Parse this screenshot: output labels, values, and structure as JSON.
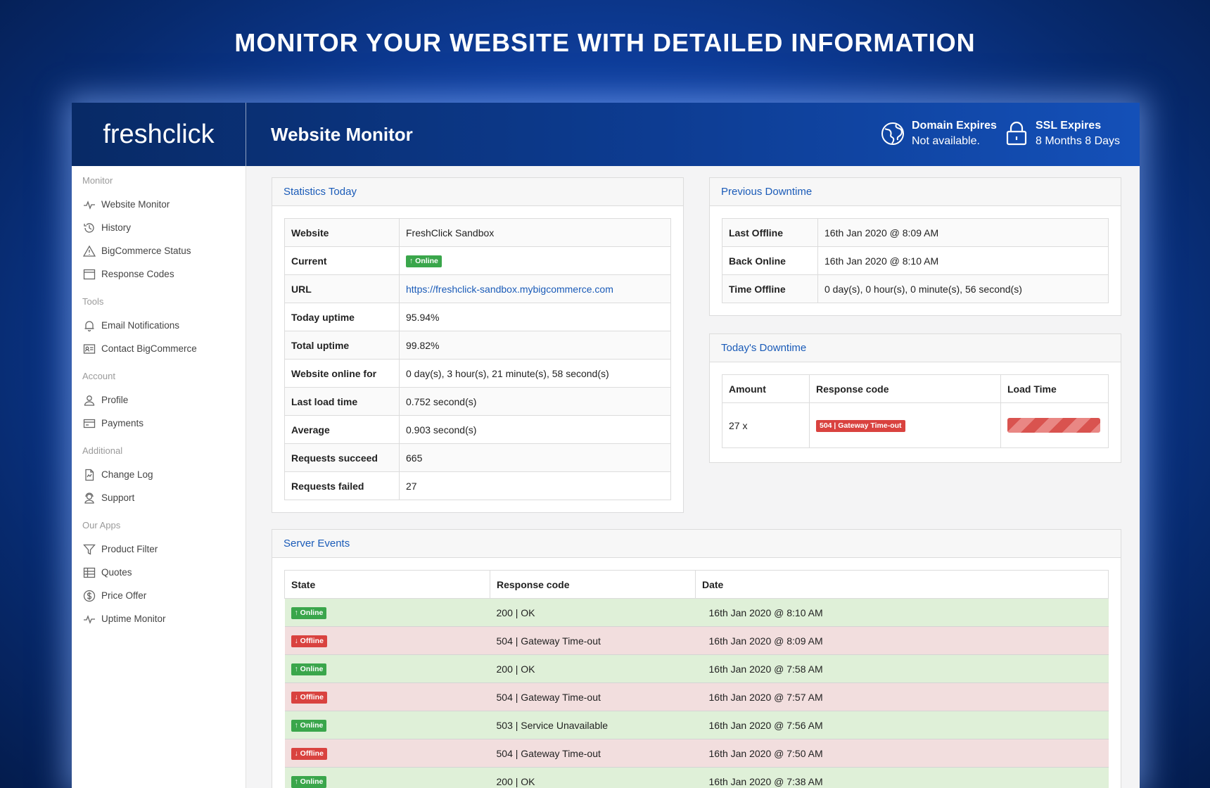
{
  "banner": "MONITOR YOUR WEBSITE WITH DETAILED INFORMATION",
  "header": {
    "logo": "freshclick",
    "title": "Website Monitor",
    "domain": {
      "label": "Domain Expires",
      "value": "Not available."
    },
    "ssl": {
      "label": "SSL Expires",
      "value": "8 Months 8 Days"
    }
  },
  "sidebar": {
    "sections": [
      {
        "title": "Monitor",
        "items": [
          {
            "label": "Website Monitor",
            "icon": "pulse-icon"
          },
          {
            "label": "History",
            "icon": "history-icon"
          },
          {
            "label": "BigCommerce Status",
            "icon": "warning-icon"
          },
          {
            "label": "Response Codes",
            "icon": "window-icon"
          }
        ]
      },
      {
        "title": "Tools",
        "items": [
          {
            "label": "Email Notifications",
            "icon": "bell-icon"
          },
          {
            "label": "Contact BigCommerce",
            "icon": "contact-card-icon"
          }
        ]
      },
      {
        "title": "Account",
        "items": [
          {
            "label": "Profile",
            "icon": "user-icon"
          },
          {
            "label": "Payments",
            "icon": "payment-card-icon"
          }
        ]
      },
      {
        "title": "Additional",
        "items": [
          {
            "label": "Change Log",
            "icon": "document-icon"
          },
          {
            "label": "Support",
            "icon": "support-icon"
          }
        ]
      },
      {
        "title": "Our Apps",
        "items": [
          {
            "label": "Product Filter",
            "icon": "filter-icon"
          },
          {
            "label": "Quotes",
            "icon": "table-icon"
          },
          {
            "label": "Price Offer",
            "icon": "dollar-icon"
          },
          {
            "label": "Uptime Monitor",
            "icon": "pulse-icon"
          }
        ]
      }
    ]
  },
  "stats": {
    "title": "Statistics Today",
    "rows": [
      {
        "key": "Website",
        "value": "FreshClick Sandbox"
      },
      {
        "key": "Current",
        "value": "Online",
        "type": "badge-online"
      },
      {
        "key": "URL",
        "value": "https://freshclick-sandbox.mybigcommerce.com",
        "type": "link"
      },
      {
        "key": "Today uptime",
        "value": "95.94%"
      },
      {
        "key": "Total uptime",
        "value": "99.82%"
      },
      {
        "key": "Website online for",
        "value": "0 day(s), 3 hour(s), 21 minute(s), 58 second(s)"
      },
      {
        "key": "Last load time",
        "value": "0.752 second(s)"
      },
      {
        "key": "Average",
        "value": "0.903 second(s)"
      },
      {
        "key": "Requests succeed",
        "value": "665"
      },
      {
        "key": "Requests failed",
        "value": "27"
      }
    ]
  },
  "previous_downtime": {
    "title": "Previous Downtime",
    "rows": [
      {
        "key": "Last Offline",
        "value": "16th Jan 2020 @ 8:09 AM"
      },
      {
        "key": "Back Online",
        "value": "16th Jan 2020 @ 8:10 AM"
      },
      {
        "key": "Time Offline",
        "value": "0 day(s), 0 hour(s), 0 minute(s), 56 second(s)"
      }
    ]
  },
  "todays_downtime": {
    "title": "Today's Downtime",
    "headers": [
      "Amount",
      "Response code",
      "Load Time"
    ],
    "rows": [
      {
        "amount": "27 x",
        "code": "504 | Gateway Time-out",
        "load_fraction": 1.0
      }
    ]
  },
  "server_events": {
    "title": "Server Events",
    "headers": [
      "State",
      "Response code",
      "Date"
    ],
    "rows": [
      {
        "state": "Online",
        "code": "200 | OK",
        "date": "16th Jan 2020 @ 8:10 AM"
      },
      {
        "state": "Offline",
        "code": "504 | Gateway Time-out",
        "date": "16th Jan 2020 @ 8:09 AM"
      },
      {
        "state": "Online",
        "code": "200 | OK",
        "date": "16th Jan 2020 @ 7:58 AM"
      },
      {
        "state": "Offline",
        "code": "504 | Gateway Time-out",
        "date": "16th Jan 2020 @ 7:57 AM"
      },
      {
        "state": "Online",
        "code": "503 | Service Unavailable",
        "date": "16th Jan 2020 @ 7:56 AM"
      },
      {
        "state": "Offline",
        "code": "504 | Gateway Time-out",
        "date": "16th Jan 2020 @ 7:50 AM"
      },
      {
        "state": "Online",
        "code": "200 | OK",
        "date": "16th Jan 2020 @ 7:38 AM"
      }
    ]
  },
  "colors": {
    "online": "#3aa64b",
    "offline": "#d9423f",
    "accent": "#1a5bb8"
  }
}
